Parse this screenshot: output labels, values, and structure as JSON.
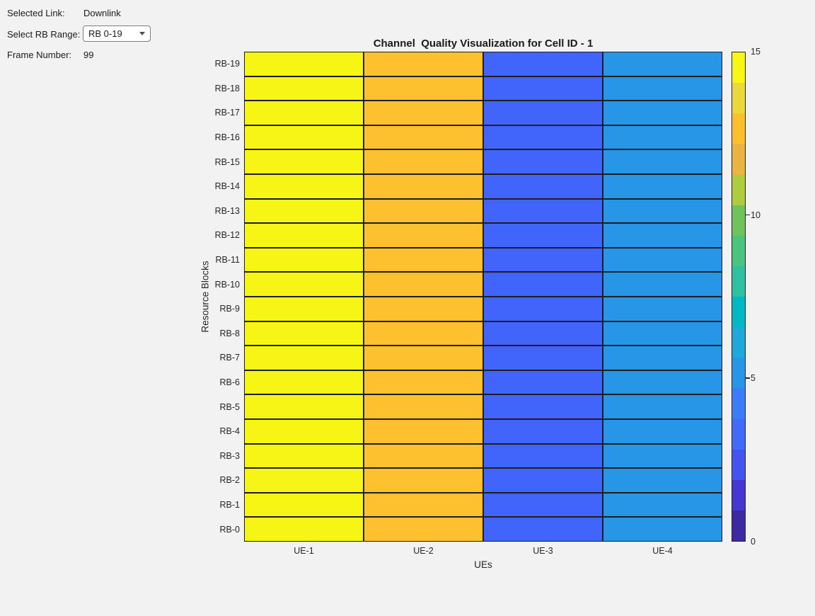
{
  "panel": {
    "selected_link_label": "Selected Link:",
    "selected_link_value": "Downlink",
    "rb_range_label": "Select RB Range:",
    "rb_range_dropdown_value": "RB 0-19",
    "frame_label": "Frame Number:",
    "frame_value": "99"
  },
  "chart_data": {
    "type": "heatmap",
    "title": "Channel  Quality Visualization for Cell ID - 1",
    "xlabel": "UEs",
    "ylabel": "Resource Blocks",
    "x_categories": [
      "UE-1",
      "UE-2",
      "UE-3",
      "UE-4"
    ],
    "y_categories": [
      "RB-19",
      "RB-18",
      "RB-17",
      "RB-16",
      "RB-15",
      "RB-14",
      "RB-13",
      "RB-12",
      "RB-11",
      "RB-10",
      "RB-9",
      "RB-8",
      "RB-7",
      "RB-6",
      "RB-5",
      "RB-4",
      "RB-3",
      "RB-2",
      "RB-1",
      "RB-0"
    ],
    "series": [
      {
        "name": "UE-1",
        "cqi_all_rbs": 15,
        "color": "#F7F513"
      },
      {
        "name": "UE-2",
        "cqi_all_rbs": 13,
        "color": "#FDC02F"
      },
      {
        "name": "UE-3",
        "cqi_all_rbs": 3,
        "color": "#4164FA"
      },
      {
        "name": "UE-4",
        "cqi_all_rbs": 5,
        "color": "#2796E6"
      }
    ],
    "note": "each UE column has a uniform CQI value across all 20 resource blocks",
    "grid_line_color": "#1F1F1F",
    "colorbar": {
      "min": 0,
      "max": 15,
      "tick_values": [
        15,
        10,
        5,
        0
      ],
      "segment_colors_top_to_bottom": [
        "#F8F614",
        "#EBD83D",
        "#FCC02F",
        "#E9B43F",
        "#AFCB3E",
        "#6FC35C",
        "#49C47E",
        "#2EC1A0",
        "#00B9C4",
        "#1FA9DA",
        "#2796E6",
        "#3A7CFA",
        "#4169FA",
        "#4553F0",
        "#4537D1",
        "#3C2AA3"
      ]
    }
  }
}
